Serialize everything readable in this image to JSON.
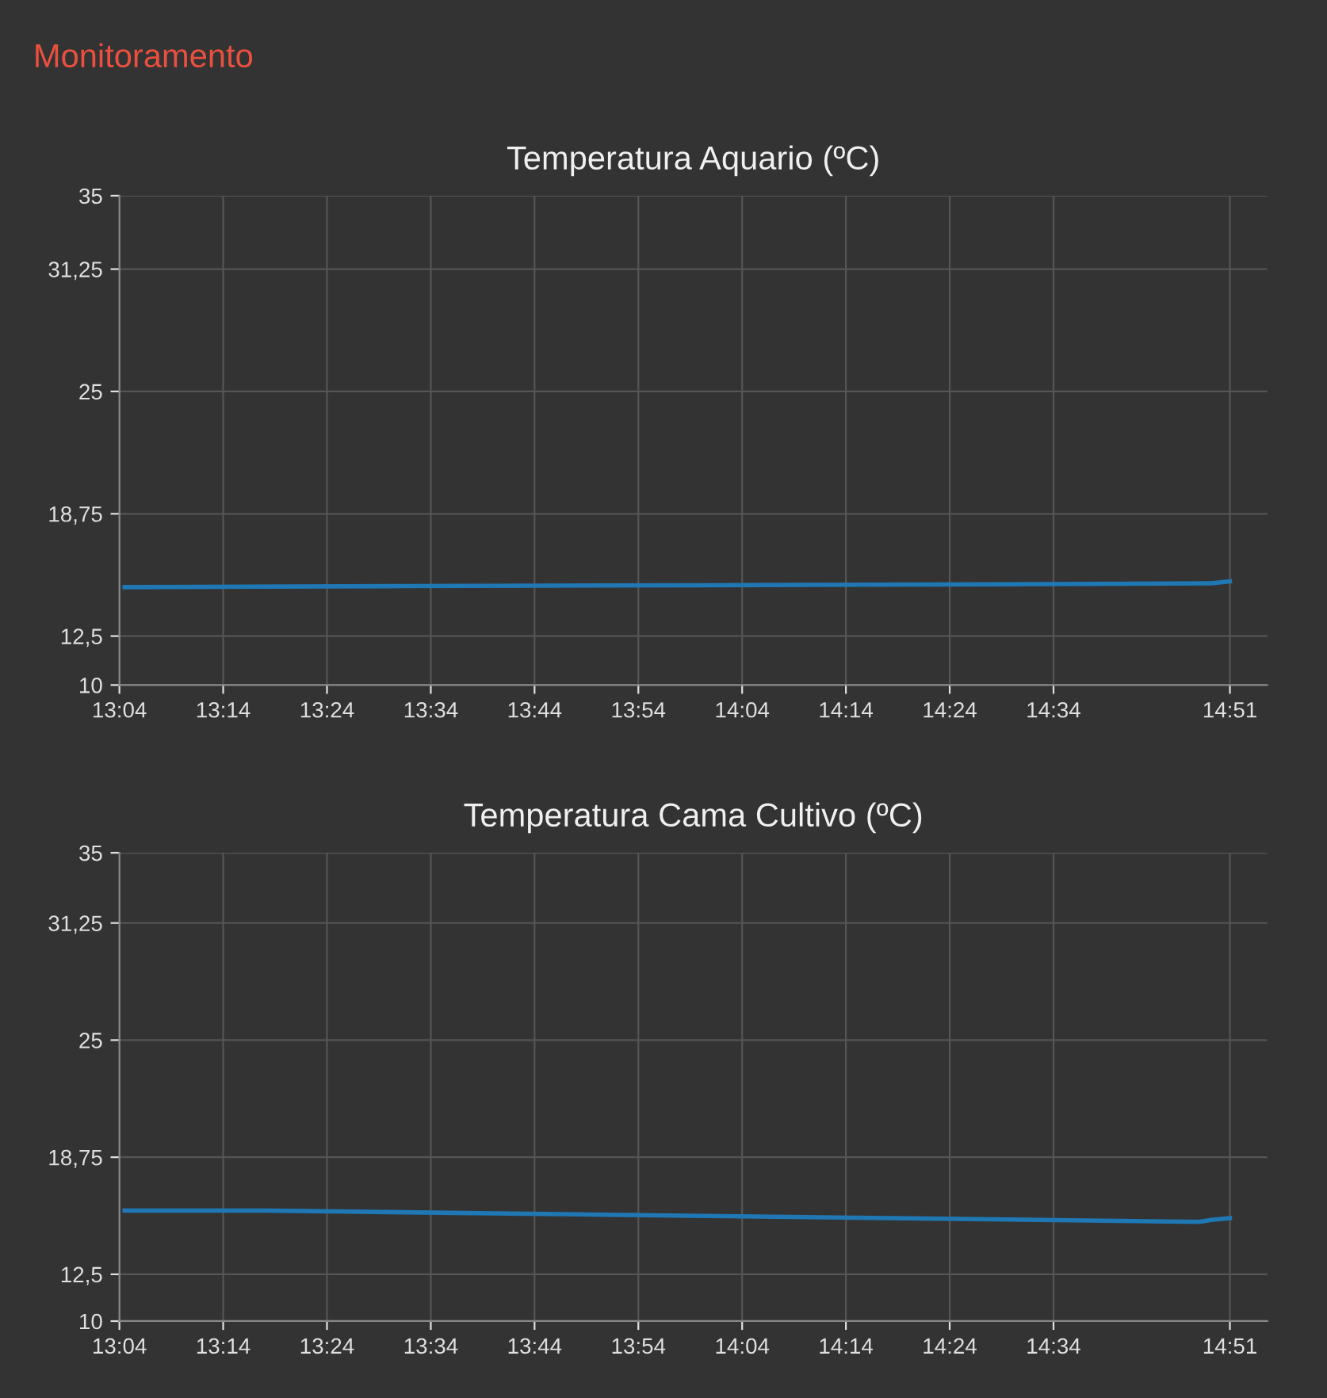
{
  "chart_data": [
    {
      "type": "line",
      "title": "Temperatura Aquario (ºC)",
      "annotations": [
        "Monitoramento"
      ],
      "series": [
        {
          "color": "#1f77b4",
          "x": [
            13.075,
            13.5,
            14.0,
            14.5,
            14.82,
            14.85
          ],
          "values": [
            15.0,
            15.05,
            15.1,
            15.15,
            15.2,
            15.3
          ]
        }
      ],
      "xlim": [
        13.0667,
        14.91
      ],
      "xticks": [
        {
          "value": 13.0667,
          "label": "13:04"
        },
        {
          "value": 13.2333,
          "label": "13:14"
        },
        {
          "value": 13.4,
          "label": "13:24"
        },
        {
          "value": 13.5667,
          "label": "13:34"
        },
        {
          "value": 13.7333,
          "label": "13:44"
        },
        {
          "value": 13.9,
          "label": "13:54"
        },
        {
          "value": 14.0667,
          "label": "14:04"
        },
        {
          "value": 14.2333,
          "label": "14:14"
        },
        {
          "value": 14.4,
          "label": "14:24"
        },
        {
          "value": 14.5667,
          "label": "14:34"
        },
        {
          "value": 14.85,
          "label": "14:51"
        }
      ],
      "ylim": [
        10,
        35
      ],
      "yticks": [
        10,
        {
          "value": 12.5,
          "label": "12,5"
        },
        {
          "value": 18.75,
          "label": "18,75"
        },
        25,
        {
          "value": 31.25,
          "label": "31,25"
        },
        35
      ],
      "grid": true,
      "legend": false,
      "marker": "none",
      "line_style": "solid"
    },
    {
      "type": "line",
      "title": "Temperatura Cama Cultivo (ºC)",
      "series": [
        {
          "color": "#1f77b4",
          "x": [
            13.075,
            13.3,
            13.8,
            14.3,
            14.8,
            14.82,
            14.85
          ],
          "values": [
            15.9,
            15.9,
            15.7,
            15.5,
            15.3,
            15.4,
            15.5
          ]
        }
      ],
      "xlim": [
        13.0667,
        14.91
      ],
      "xticks": [
        {
          "value": 13.0667,
          "label": "13:04"
        },
        {
          "value": 13.2333,
          "label": "13:14"
        },
        {
          "value": 13.4,
          "label": "13:24"
        },
        {
          "value": 13.5667,
          "label": "13:34"
        },
        {
          "value": 13.7333,
          "label": "13:44"
        },
        {
          "value": 13.9,
          "label": "13:54"
        },
        {
          "value": 14.0667,
          "label": "14:04"
        },
        {
          "value": 14.2333,
          "label": "14:14"
        },
        {
          "value": 14.4,
          "label": "14:24"
        },
        {
          "value": 14.5667,
          "label": "14:34"
        },
        {
          "value": 14.85,
          "label": "14:51"
        }
      ],
      "ylim": [
        10,
        35
      ],
      "yticks": [
        10,
        {
          "value": 12.5,
          "label": "12,5"
        },
        {
          "value": 18.75,
          "label": "18,75"
        },
        25,
        {
          "value": 31.25,
          "label": "31,25"
        },
        35
      ],
      "grid": true,
      "legend": false,
      "marker": "none",
      "line_style": "solid"
    }
  ]
}
